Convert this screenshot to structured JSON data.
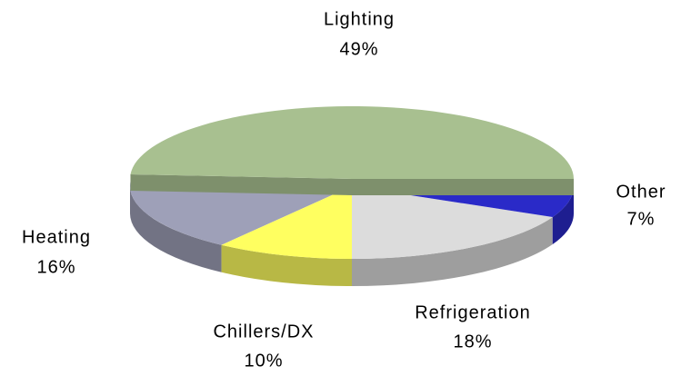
{
  "chart_data": {
    "type": "pie",
    "categories": [
      "Lighting",
      "Heating",
      "Chillers/DX",
      "Refrigeration",
      "Other"
    ],
    "values": [
      49,
      16,
      10,
      18,
      7
    ],
    "value_labels": [
      "49%",
      "16%",
      "10%",
      "18%",
      "7%"
    ],
    "colors": [
      "#a8c090",
      "#9ea0b8",
      "#ffff60",
      "#dcdcdc",
      "#2a2ac8"
    ]
  }
}
